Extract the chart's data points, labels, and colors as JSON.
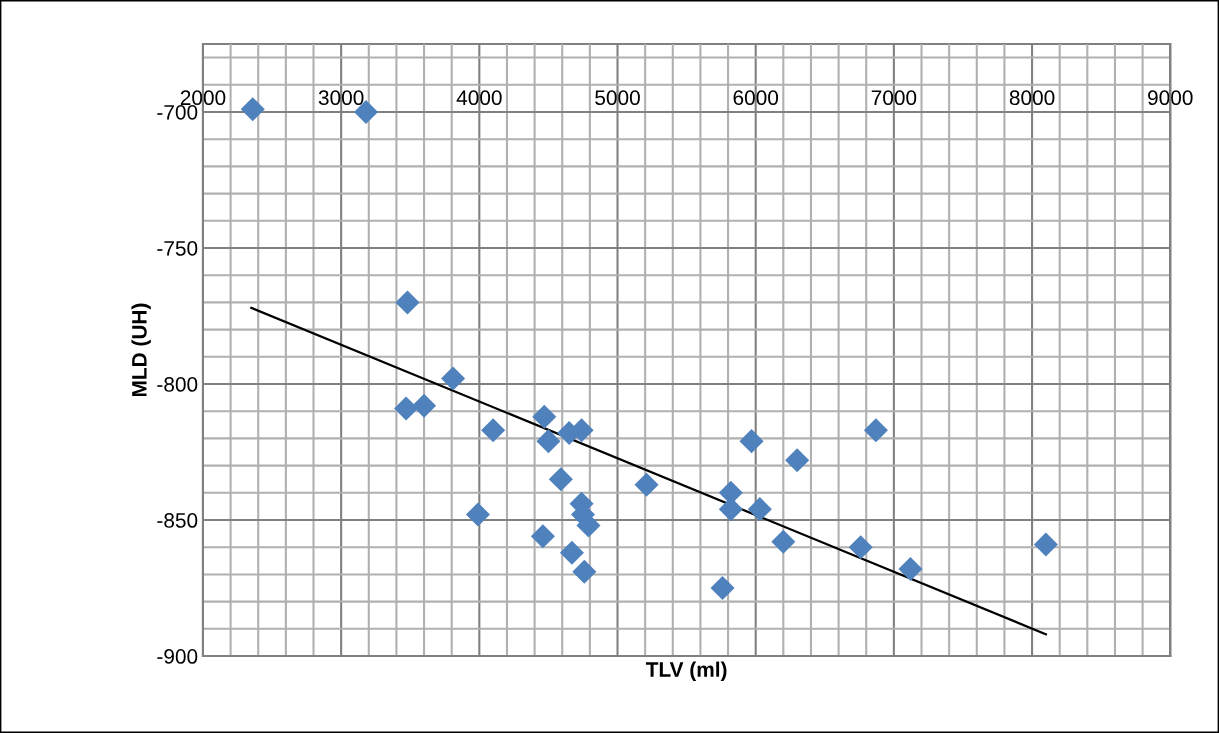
{
  "chart_data": {
    "type": "scatter",
    "xlabel": "TLV (ml)",
    "ylabel": "MLD (UH)",
    "xlim": [
      2000,
      9000
    ],
    "xticks": [
      2000,
      3000,
      4000,
      5000,
      6000,
      7000,
      8000,
      9000
    ],
    "ylim": [
      -900,
      -675
    ],
    "yticks": [
      -900,
      -850,
      -800,
      -750,
      -700
    ],
    "grid": true,
    "legend": false,
    "series": [
      {
        "color": "#4f81bd",
        "marker": "diamond",
        "x": [
          2360,
          3180,
          3480,
          3810,
          3470,
          3600,
          4100,
          4470,
          4500,
          4650,
          4740,
          4590,
          3990,
          4740,
          4750,
          4790,
          4460,
          4670,
          4760,
          5210,
          5970,
          6300,
          6870,
          5820,
          5820,
          6030,
          6200,
          6760,
          7120,
          8100,
          5760
        ],
        "values": [
          -699,
          -700,
          -770,
          -798,
          -809,
          -808,
          -817,
          -812,
          -821,
          -818,
          -817,
          -835,
          -848,
          -844,
          -848,
          -852,
          -856,
          -862,
          -869,
          -837,
          -821,
          -828,
          -817,
          -840,
          -846,
          -846,
          -858,
          -860,
          -868,
          -859,
          -875
        ]
      },
      {
        "type": "line",
        "color": "#000000",
        "marker": "none",
        "line_style": "solid",
        "x": [
          2350,
          8100
        ],
        "values": [
          -772,
          -892
        ]
      }
    ]
  }
}
